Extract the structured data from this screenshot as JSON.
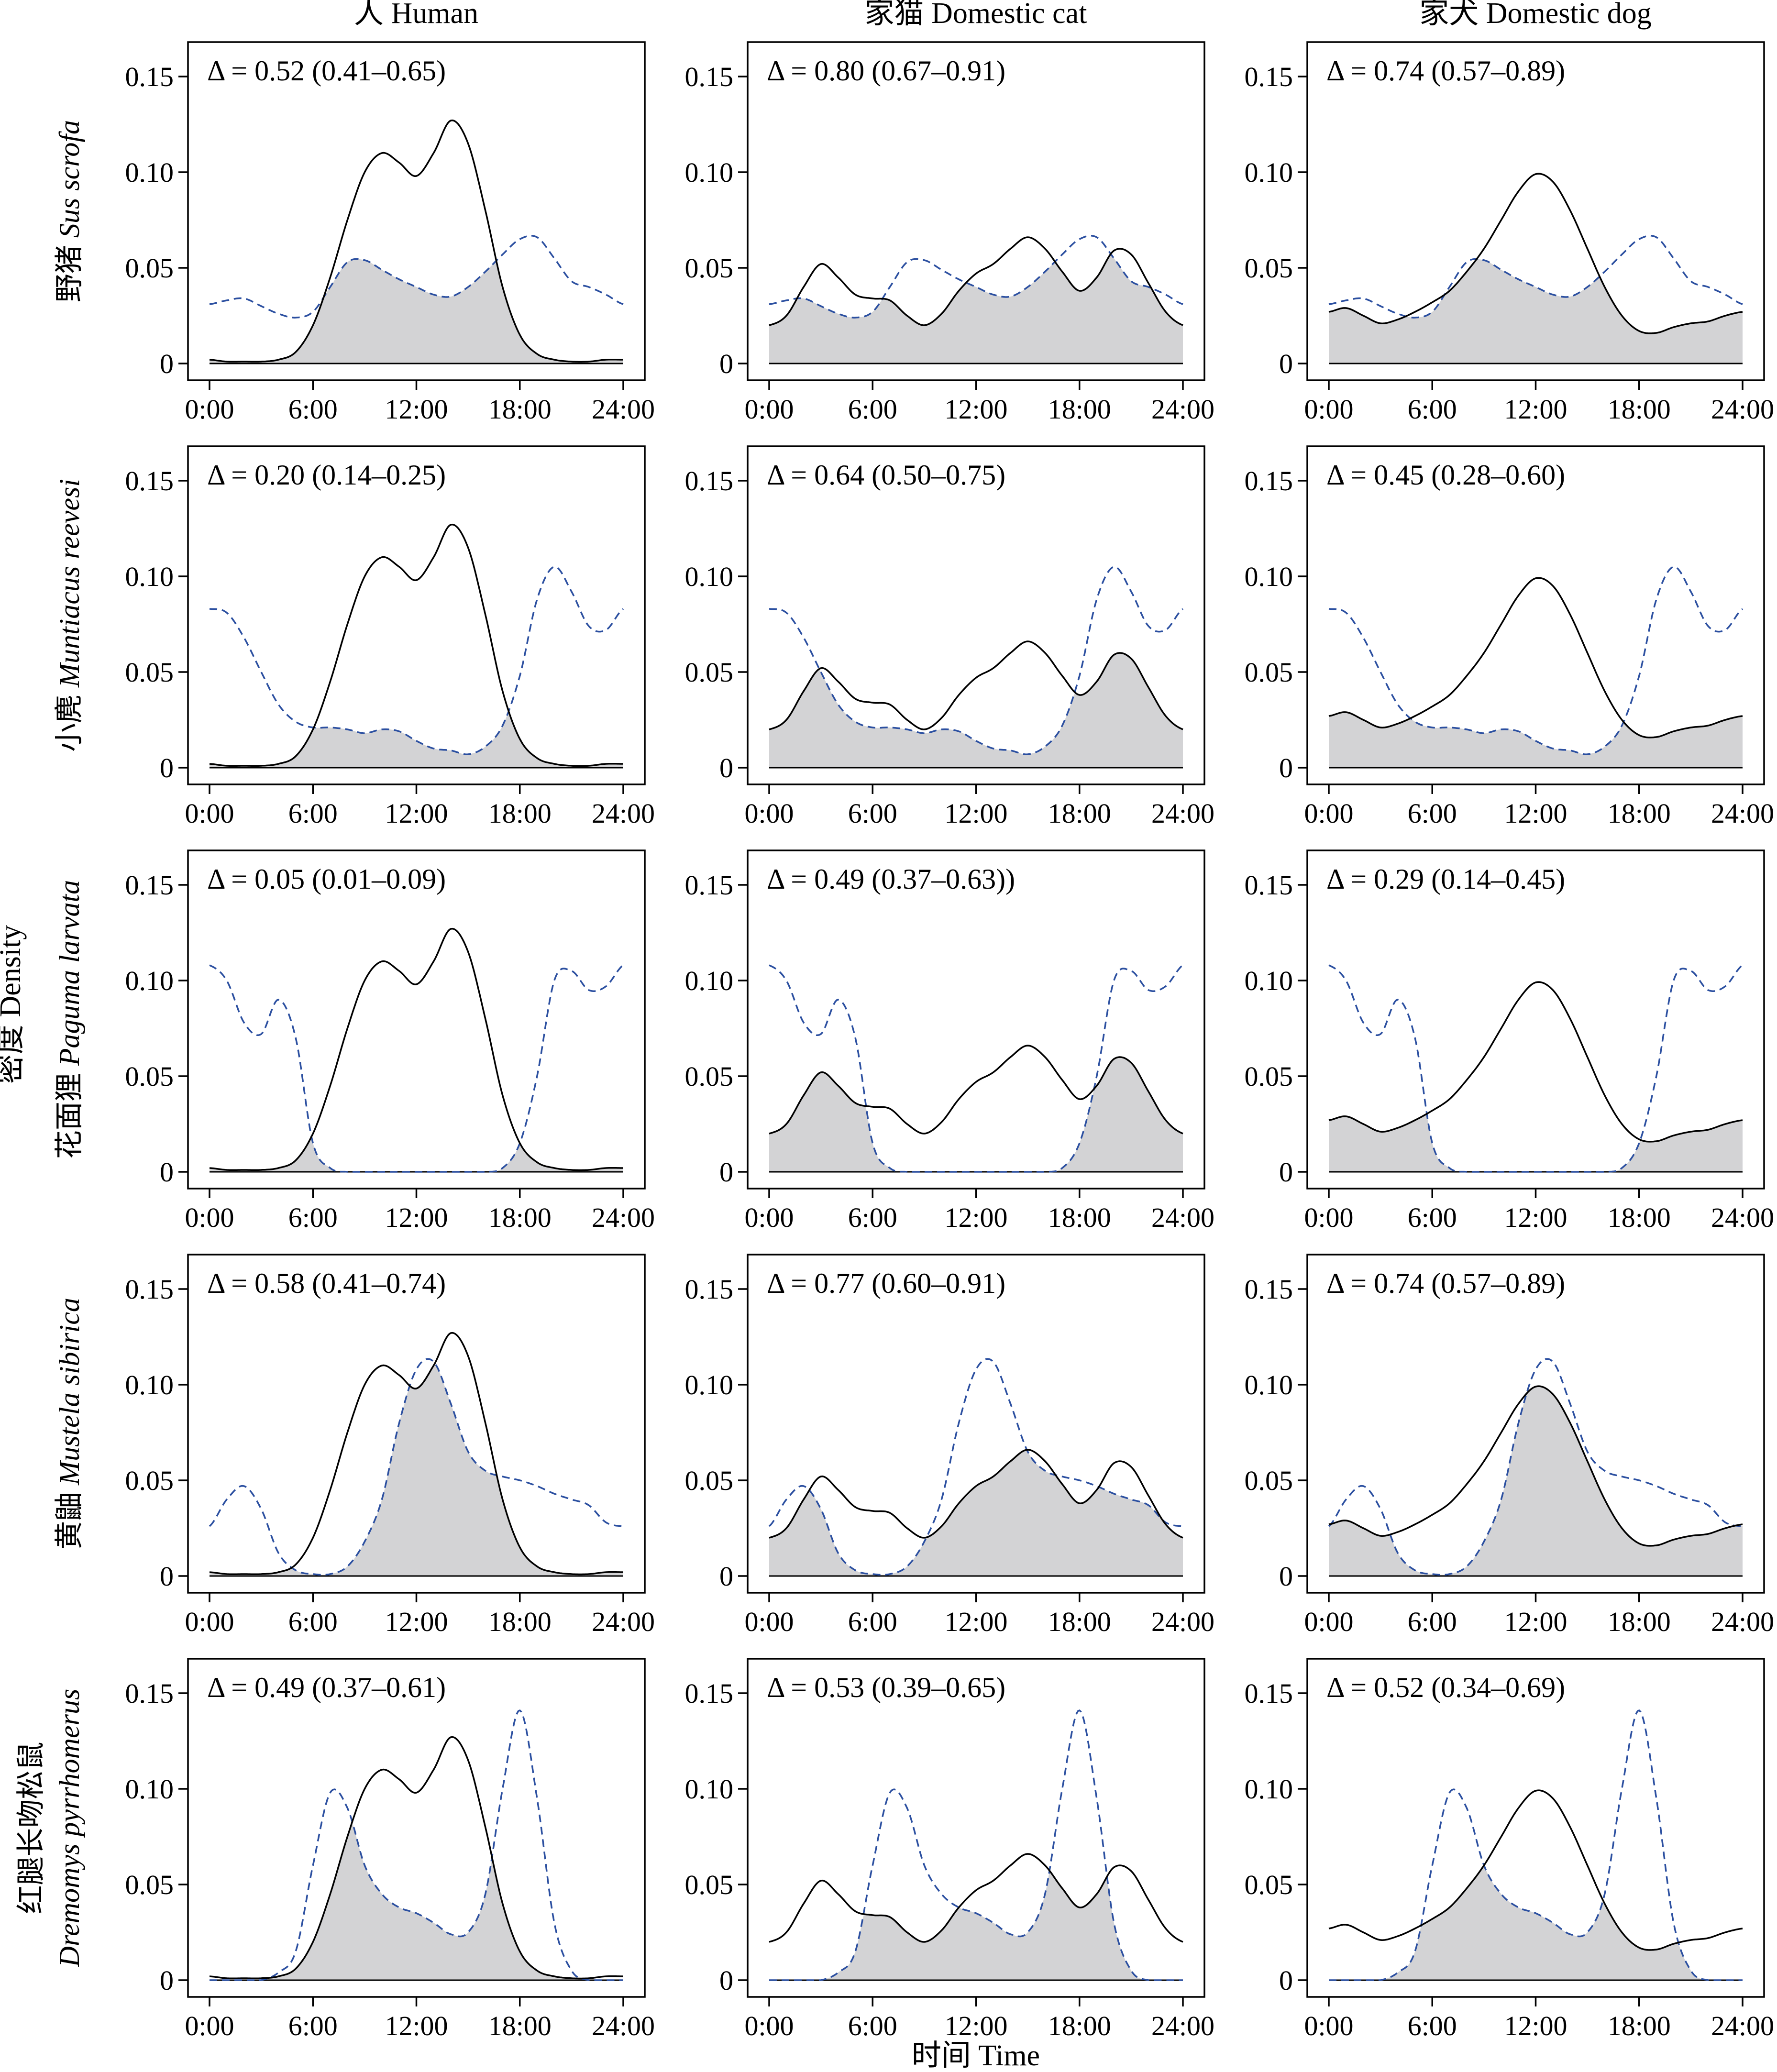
{
  "figure": {
    "col_titles": [
      "人 Human",
      "家猫  Domestic cat",
      "家犬  Domestic dog"
    ],
    "row_labels": [
      {
        "cn": "野猪",
        "latin": "Sus scrofa"
      },
      {
        "cn": "小麂",
        "latin": "Muntiacus reevesi"
      },
      {
        "cn": "花面狸",
        "latin": "Paguma larvata"
      },
      {
        "cn": "黄鼬",
        "latin": "Mustela sibirica"
      },
      {
        "cn": "红腿长吻松鼠",
        "latin": "Dremomys pyrrhomerus"
      }
    ],
    "y_axis_label": "密度  Density",
    "x_axis_label": "时间  Time",
    "colors": {
      "disturbance_line": "#000000",
      "species_line": "#2b4fa0",
      "overlap_fill": "#d3d3d5"
    }
  },
  "chart_data": {
    "type": "line",
    "layout": "grid 5 rows x 3 columns (overlap density panels)",
    "x_ticks": [
      "0:00",
      "6:00",
      "12:00",
      "18:00",
      "24:00"
    ],
    "x_range_hours": [
      0,
      24
    ],
    "y_ticks": [
      "0",
      "0.05",
      "0.10",
      "0.15"
    ],
    "ylim": [
      0,
      0.16
    ],
    "line_styles": {
      "disturbance": "solid black",
      "species": "dashed blue",
      "overlap": "shaded grey area"
    },
    "disturbance_curves": {
      "Human": {
        "x": [
          0,
          1,
          2,
          3,
          4,
          5,
          6,
          7,
          8,
          9,
          10,
          11,
          12,
          13,
          14,
          15,
          16,
          17,
          18,
          19,
          20,
          21,
          22,
          23,
          24
        ],
        "y": [
          0.002,
          0.001,
          0.001,
          0.001,
          0.002,
          0.006,
          0.02,
          0.045,
          0.075,
          0.1,
          0.11,
          0.105,
          0.098,
          0.11,
          0.127,
          0.115,
          0.08,
          0.04,
          0.015,
          0.005,
          0.002,
          0.001,
          0.001,
          0.002,
          0.002
        ]
      },
      "Domestic cat": {
        "x": [
          0,
          1,
          2,
          3,
          4,
          5,
          6,
          7,
          8,
          9,
          10,
          11,
          12,
          13,
          14,
          15,
          16,
          17,
          18,
          19,
          20,
          21,
          22,
          23,
          24
        ],
        "y": [
          0.02,
          0.025,
          0.04,
          0.052,
          0.045,
          0.036,
          0.034,
          0.033,
          0.025,
          0.02,
          0.026,
          0.038,
          0.047,
          0.052,
          0.06,
          0.066,
          0.06,
          0.048,
          0.038,
          0.045,
          0.059,
          0.057,
          0.042,
          0.027,
          0.02
        ]
      },
      "Domestic dog": {
        "x": [
          0,
          1,
          2,
          3,
          4,
          5,
          6,
          7,
          8,
          9,
          10,
          11,
          12,
          13,
          14,
          15,
          16,
          17,
          18,
          19,
          20,
          21,
          22,
          23,
          24
        ],
        "y": [
          0.027,
          0.029,
          0.025,
          0.021,
          0.023,
          0.027,
          0.032,
          0.038,
          0.048,
          0.06,
          0.075,
          0.09,
          0.099,
          0.095,
          0.08,
          0.06,
          0.04,
          0.025,
          0.017,
          0.016,
          0.019,
          0.021,
          0.022,
          0.025,
          0.027
        ]
      }
    },
    "species_curves": {
      "Sus scrofa": {
        "x": [
          0,
          1,
          2,
          3,
          4,
          5,
          6,
          7,
          8,
          9,
          10,
          11,
          12,
          13,
          14,
          15,
          16,
          17,
          18,
          19,
          20,
          21,
          22,
          23,
          24
        ],
        "y": [
          0.031,
          0.033,
          0.034,
          0.03,
          0.026,
          0.024,
          0.027,
          0.04,
          0.053,
          0.054,
          0.049,
          0.044,
          0.04,
          0.036,
          0.035,
          0.04,
          0.048,
          0.057,
          0.065,
          0.066,
          0.055,
          0.043,
          0.04,
          0.036,
          0.031
        ]
      },
      "Muntiacus reevesi": {
        "x": [
          0,
          1,
          2,
          3,
          4,
          5,
          6,
          7,
          8,
          9,
          10,
          11,
          12,
          13,
          14,
          15,
          16,
          17,
          18,
          19,
          20,
          21,
          22,
          23,
          24
        ],
        "y": [
          0.083,
          0.081,
          0.068,
          0.05,
          0.033,
          0.024,
          0.021,
          0.021,
          0.02,
          0.018,
          0.02,
          0.019,
          0.014,
          0.01,
          0.009,
          0.007,
          0.011,
          0.022,
          0.048,
          0.088,
          0.105,
          0.092,
          0.074,
          0.072,
          0.083
        ]
      },
      "Paguma larvata": {
        "x": [
          0,
          1,
          2,
          3,
          4,
          5,
          6,
          7,
          8,
          9,
          10,
          11,
          12,
          13,
          14,
          15,
          16,
          17,
          18,
          19,
          20,
          21,
          22,
          23,
          24
        ],
        "y": [
          0.108,
          0.1,
          0.078,
          0.072,
          0.09,
          0.07,
          0.015,
          0.002,
          0.0,
          0.0,
          0.0,
          0.0,
          0.0,
          0.0,
          0.0,
          0.0,
          0.0,
          0.002,
          0.015,
          0.05,
          0.1,
          0.105,
          0.095,
          0.097,
          0.108
        ]
      },
      "Mustela sibirica": {
        "x": [
          0,
          1,
          2,
          3,
          4,
          5,
          6,
          7,
          8,
          9,
          10,
          11,
          12,
          13,
          14,
          15,
          16,
          17,
          18,
          19,
          20,
          21,
          22,
          23,
          24
        ],
        "y": [
          0.026,
          0.04,
          0.047,
          0.035,
          0.012,
          0.003,
          0.001,
          0.001,
          0.005,
          0.018,
          0.04,
          0.08,
          0.108,
          0.112,
          0.09,
          0.065,
          0.055,
          0.052,
          0.05,
          0.047,
          0.043,
          0.04,
          0.037,
          0.028,
          0.026
        ]
      },
      "Dremomys pyrrhomerus": {
        "x": [
          0,
          1,
          2,
          3,
          4,
          5,
          6,
          7,
          8,
          9,
          10,
          11,
          12,
          13,
          14,
          15,
          16,
          17,
          18,
          19,
          20,
          21,
          22,
          23,
          24
        ],
        "y": [
          0.0,
          0.0,
          0.0,
          0.0,
          0.004,
          0.015,
          0.06,
          0.098,
          0.09,
          0.06,
          0.045,
          0.038,
          0.035,
          0.03,
          0.024,
          0.025,
          0.045,
          0.1,
          0.141,
          0.095,
          0.03,
          0.005,
          0.0,
          0.0,
          0.0
        ]
      }
    },
    "overlap_labels": [
      [
        "Δ = 0.52 (0.41–0.65)",
        "Δ = 0.80 (0.67–0.91)",
        "Δ = 0.74 (0.57–0.89)"
      ],
      [
        "Δ = 0.20 (0.14–0.25)",
        "Δ = 0.64 (0.50–0.75)",
        "Δ = 0.45 (0.28–0.60)"
      ],
      [
        "Δ = 0.05 (0.01–0.09)",
        "Δ = 0.49 (0.37–0.63))",
        "Δ = 0.29 (0.14–0.45)"
      ],
      [
        "Δ = 0.58 (0.41–0.74)",
        "Δ = 0.77 (0.60–0.91)",
        "Δ = 0.74 (0.57–0.89)"
      ],
      [
        "Δ = 0.49 (0.37–0.61)",
        "Δ = 0.53 (0.39–0.65)",
        "Δ = 0.52 (0.34–0.69)"
      ]
    ],
    "columns": [
      "Human",
      "Domestic cat",
      "Domestic dog"
    ],
    "rows": [
      "Sus scrofa",
      "Muntiacus reevesi",
      "Paguma larvata",
      "Mustela sibirica",
      "Dremomys pyrrhomerus"
    ]
  }
}
